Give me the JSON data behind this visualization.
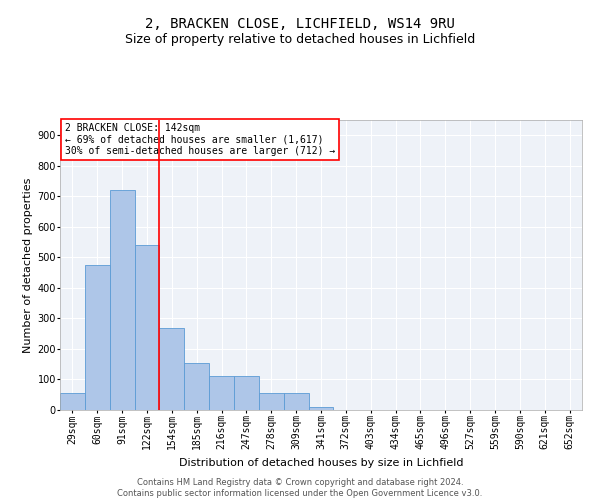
{
  "title": "2, BRACKEN CLOSE, LICHFIELD, WS14 9RU",
  "subtitle": "Size of property relative to detached houses in Lichfield",
  "xlabel": "Distribution of detached houses by size in Lichfield",
  "ylabel": "Number of detached properties",
  "footer_line1": "Contains HM Land Registry data © Crown copyright and database right 2024.",
  "footer_line2": "Contains public sector information licensed under the Open Government Licence v3.0.",
  "categories": [
    "29sqm",
    "60sqm",
    "91sqm",
    "122sqm",
    "154sqm",
    "185sqm",
    "216sqm",
    "247sqm",
    "278sqm",
    "309sqm",
    "341sqm",
    "372sqm",
    "403sqm",
    "434sqm",
    "465sqm",
    "496sqm",
    "527sqm",
    "559sqm",
    "590sqm",
    "621sqm",
    "652sqm"
  ],
  "values": [
    55,
    475,
    720,
    540,
    270,
    155,
    110,
    110,
    55,
    55,
    10,
    0,
    0,
    0,
    0,
    0,
    0,
    0,
    0,
    0,
    0
  ],
  "bar_color": "#aec6e8",
  "bar_edge_color": "#5b9bd5",
  "vline_color": "red",
  "vline_x_index": 3.5,
  "annotation_text": "2 BRACKEN CLOSE: 142sqm\n← 69% of detached houses are smaller (1,617)\n30% of semi-detached houses are larger (712) →",
  "annotation_box_color": "white",
  "annotation_box_edge_color": "red",
  "ylim": [
    0,
    950
  ],
  "yticks": [
    0,
    100,
    200,
    300,
    400,
    500,
    600,
    700,
    800,
    900
  ],
  "background_color": "#eef2f8",
  "grid_color": "white",
  "title_fontsize": 10,
  "subtitle_fontsize": 9,
  "xlabel_fontsize": 8,
  "ylabel_fontsize": 8,
  "tick_fontsize": 7,
  "annotation_fontsize": 7,
  "footer_fontsize": 6
}
